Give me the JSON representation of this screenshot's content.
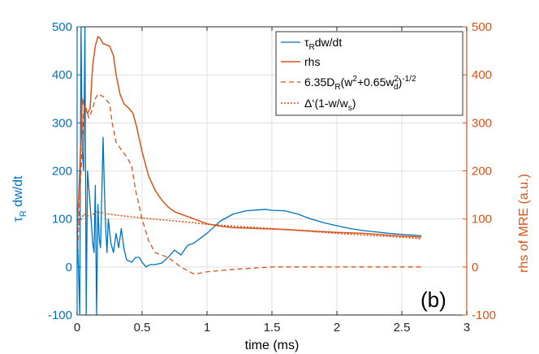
{
  "chart_data": {
    "type": "line",
    "xlabel": "time (ms)",
    "ylabel_left": "τ_R dw/dt",
    "ylabel_right": "rhs of MRE (a.u.)",
    "xlim": [
      0,
      3
    ],
    "ylim_left": [
      -100,
      500
    ],
    "ylim_right": [
      -100,
      500
    ],
    "xticks": [
      "0",
      "0.5",
      "1",
      "1.5",
      "2",
      "2.5",
      "3"
    ],
    "yticks_left": [
      "-100",
      "0",
      "100",
      "200",
      "300",
      "400",
      "500"
    ],
    "yticks_right": [
      "-100",
      "0",
      "100",
      "200",
      "300",
      "400",
      "500"
    ],
    "grid": true,
    "legend_position": "top-right",
    "panel_label": "(b)",
    "colors": {
      "left_axis": "#0072BD",
      "right_axis": "#D95319"
    },
    "series": [
      {
        "name": "τ_R dw/dt",
        "axis": "left",
        "color": "#0072BD",
        "style": "solid",
        "points": [
          [
            0.0,
            100
          ],
          [
            0.02,
            -100
          ],
          [
            0.03,
            500
          ],
          [
            0.04,
            240
          ],
          [
            0.05,
            200
          ],
          [
            0.06,
            500
          ],
          [
            0.07,
            -100
          ],
          [
            0.08,
            200
          ],
          [
            0.1,
            130
          ],
          [
            0.12,
            50
          ],
          [
            0.13,
            30
          ],
          [
            0.14,
            170
          ],
          [
            0.15,
            -100
          ],
          [
            0.16,
            130
          ],
          [
            0.17,
            60
          ],
          [
            0.18,
            40
          ],
          [
            0.19,
            150
          ],
          [
            0.2,
            270
          ],
          [
            0.21,
            160
          ],
          [
            0.22,
            80
          ],
          [
            0.23,
            30
          ],
          [
            0.24,
            100
          ],
          [
            0.26,
            50
          ],
          [
            0.28,
            30
          ],
          [
            0.3,
            70
          ],
          [
            0.32,
            40
          ],
          [
            0.34,
            80
          ],
          [
            0.36,
            40
          ],
          [
            0.38,
            15
          ],
          [
            0.42,
            10
          ],
          [
            0.45,
            20
          ],
          [
            0.48,
            20
          ],
          [
            0.5,
            10
          ],
          [
            0.53,
            0
          ],
          [
            0.56,
            5
          ],
          [
            0.6,
            5
          ],
          [
            0.65,
            8
          ],
          [
            0.7,
            20
          ],
          [
            0.75,
            35
          ],
          [
            0.8,
            25
          ],
          [
            0.85,
            45
          ],
          [
            0.9,
            50
          ],
          [
            0.95,
            60
          ],
          [
            1.0,
            70
          ],
          [
            1.1,
            95
          ],
          [
            1.2,
            110
          ],
          [
            1.3,
            117
          ],
          [
            1.4,
            119
          ],
          [
            1.45,
            120
          ],
          [
            1.5,
            118
          ],
          [
            1.6,
            117
          ],
          [
            1.7,
            110
          ],
          [
            1.8,
            100
          ],
          [
            1.9,
            92
          ],
          [
            2.0,
            86
          ],
          [
            2.1,
            80
          ],
          [
            2.2,
            76
          ],
          [
            2.3,
            73
          ],
          [
            2.4,
            70
          ],
          [
            2.5,
            68
          ],
          [
            2.6,
            66
          ],
          [
            2.65,
            65
          ]
        ]
      },
      {
        "name": "rhs",
        "axis": "right",
        "color": "#D95319",
        "style": "solid",
        "points": [
          [
            0.0,
            70
          ],
          [
            0.02,
            200
          ],
          [
            0.04,
            350
          ],
          [
            0.06,
            330
          ],
          [
            0.08,
            320
          ],
          [
            0.1,
            330
          ],
          [
            0.12,
            420
          ],
          [
            0.14,
            460
          ],
          [
            0.16,
            480
          ],
          [
            0.18,
            475
          ],
          [
            0.2,
            465
          ],
          [
            0.25,
            460
          ],
          [
            0.28,
            440
          ],
          [
            0.3,
            400
          ],
          [
            0.33,
            360
          ],
          [
            0.36,
            340
          ],
          [
            0.4,
            330
          ],
          [
            0.43,
            320
          ],
          [
            0.46,
            290
          ],
          [
            0.5,
            240
          ],
          [
            0.55,
            190
          ],
          [
            0.6,
            160
          ],
          [
            0.65,
            140
          ],
          [
            0.7,
            125
          ],
          [
            0.75,
            115
          ],
          [
            0.8,
            110
          ],
          [
            0.9,
            100
          ],
          [
            1.0,
            90
          ],
          [
            1.1,
            85
          ],
          [
            1.2,
            82
          ],
          [
            1.4,
            80
          ],
          [
            1.6,
            78
          ],
          [
            1.8,
            75
          ],
          [
            2.0,
            72
          ],
          [
            2.2,
            70
          ],
          [
            2.4,
            66
          ],
          [
            2.6,
            63
          ],
          [
            2.65,
            62
          ]
        ]
      },
      {
        "name": "6.35D_R(w²+0.65w_d²)^-1/2",
        "axis": "right",
        "color": "#D95319",
        "style": "dashed",
        "points": [
          [
            0.0,
            5
          ],
          [
            0.03,
            200
          ],
          [
            0.05,
            320
          ],
          [
            0.07,
            330
          ],
          [
            0.09,
            310
          ],
          [
            0.12,
            330
          ],
          [
            0.14,
            350
          ],
          [
            0.16,
            360
          ],
          [
            0.2,
            355
          ],
          [
            0.25,
            340
          ],
          [
            0.27,
            300
          ],
          [
            0.3,
            260
          ],
          [
            0.35,
            240
          ],
          [
            0.38,
            230
          ],
          [
            0.42,
            210
          ],
          [
            0.45,
            160
          ],
          [
            0.5,
            100
          ],
          [
            0.55,
            55
          ],
          [
            0.6,
            30
          ],
          [
            0.7,
            20
          ],
          [
            0.8,
            0
          ],
          [
            0.9,
            -15
          ],
          [
            1.0,
            -10
          ],
          [
            1.2,
            -5
          ],
          [
            1.5,
            0
          ],
          [
            2.0,
            0
          ],
          [
            2.65,
            0
          ]
        ]
      },
      {
        "name": "Δ′(1−w/w_s)",
        "axis": "right",
        "color": "#D95319",
        "style": "dotted",
        "points": [
          [
            0.0,
            80
          ],
          [
            0.05,
            110
          ],
          [
            0.1,
            105
          ],
          [
            0.15,
            115
          ],
          [
            0.2,
            112
          ],
          [
            0.3,
            108
          ],
          [
            0.5,
            102
          ],
          [
            0.7,
            97
          ],
          [
            0.9,
            92
          ],
          [
            1.0,
            89
          ],
          [
            1.2,
            85
          ],
          [
            1.5,
            80
          ],
          [
            1.8,
            74
          ],
          [
            2.0,
            70
          ],
          [
            2.3,
            65
          ],
          [
            2.5,
            62
          ],
          [
            2.65,
            59
          ]
        ]
      }
    ]
  }
}
